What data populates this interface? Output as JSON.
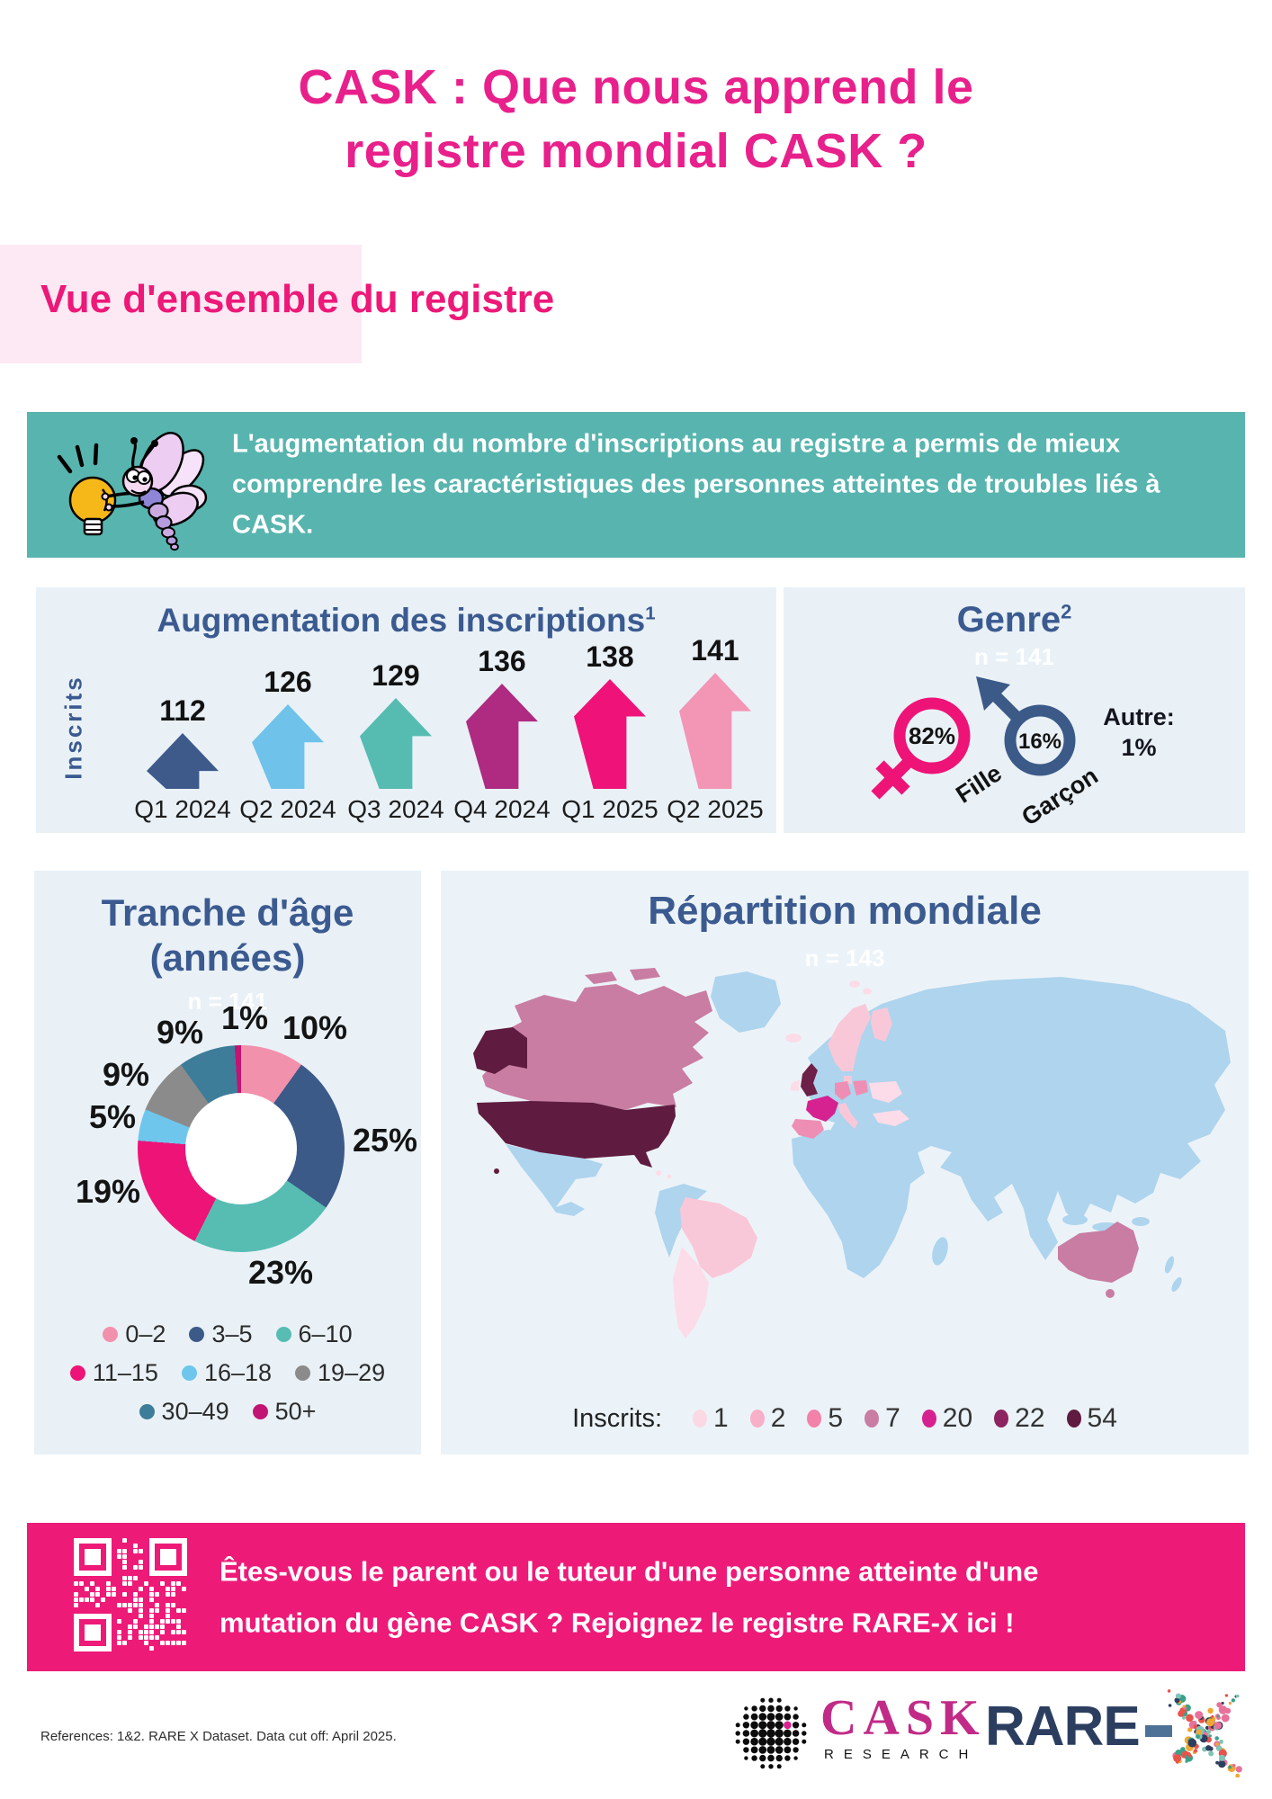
{
  "header": {
    "title_line1": "CASK : Que nous apprend le",
    "title_line2": "registre mondial CASK ?",
    "section_label": "Vue d'ensemble du registre"
  },
  "intro_banner": {
    "text": "L'augmentation du nombre d'inscriptions au registre a permis de mieux comprendre les caractéristiques des personnes atteintes de troubles liés à CASK."
  },
  "inscriptions": {
    "title": "Augmentation des inscriptions",
    "title_sup": "1",
    "ylabel": "Inscrits",
    "items": [
      {
        "label": "Q1 2024",
        "value": "112",
        "color": "#3d5a8a"
      },
      {
        "label": "Q2 2024",
        "value": "126",
        "color": "#6fc2ea"
      },
      {
        "label": "Q3 2024",
        "value": "129",
        "color": "#56bcb2"
      },
      {
        "label": "Q4 2024",
        "value": "136",
        "color": "#ae2b81"
      },
      {
        "label": "Q1 2025",
        "value": "138",
        "color": "#ef1379"
      },
      {
        "label": "Q2 2025",
        "value": "141",
        "color": "#f395b5"
      }
    ]
  },
  "genre": {
    "title": "Genre",
    "title_sup": "2",
    "n_label": "n = 141",
    "female_pct": "82%",
    "female_label": "Fille",
    "female_color": "#ee1377",
    "male_pct": "16%",
    "male_label": "Garçon",
    "male_color": "#3c5a88",
    "other_label": "Autre:",
    "other_pct": "1%"
  },
  "age": {
    "title_line1": "Tranche d'âge",
    "title_line2": "(années)",
    "n_label": "n = 141",
    "segments": [
      {
        "label": "0–2",
        "pct": 10,
        "pct_label": "10%",
        "color": "#f291ac"
      },
      {
        "label": "3–5",
        "pct": 25,
        "pct_label": "25%",
        "color": "#3c5a88"
      },
      {
        "label": "6–10",
        "pct": 23,
        "pct_label": "23%",
        "color": "#57bdb3"
      },
      {
        "label": "11–15",
        "pct": 19,
        "pct_label": "19%",
        "color": "#ee1377"
      },
      {
        "label": "16–18",
        "pct": 5,
        "pct_label": "5%",
        "color": "#6ec6ec"
      },
      {
        "label": "19–29",
        "pct": 9,
        "pct_label": "9%",
        "color": "#8b8b8b"
      },
      {
        "label": "30–49",
        "pct": 9,
        "pct_label": "9%",
        "color": "#3e7d99"
      },
      {
        "label": "50+",
        "pct": 1,
        "pct_label": "1%",
        "color": "#c21472"
      }
    ]
  },
  "map": {
    "title": "Répartition mondiale",
    "n_label": "n = 143",
    "legend_label": "Inscrits:",
    "legend": [
      {
        "value": "1",
        "color": "#fbd9e4"
      },
      {
        "value": "2",
        "color": "#f8afc8"
      },
      {
        "value": "5",
        "color": "#f282aa"
      },
      {
        "value": "7",
        "color": "#c97da3"
      },
      {
        "value": "20",
        "color": "#d62190"
      },
      {
        "value": "22",
        "color": "#8e2361"
      },
      {
        "value": "54",
        "color": "#5f1b40"
      }
    ],
    "palette": {
      "1": "#fcdce8",
      "2": "#f9c8d8",
      "5": "#ef8eb4",
      "7": "#c97da3",
      "20": "#d62190",
      "22": "#6d2048",
      "54": "#5f1b40"
    },
    "regions": {
      "usa": "54",
      "canada": "7",
      "uk": "22",
      "france": "20",
      "germany": "5",
      "poland": "5",
      "spain": "5",
      "italy": "2",
      "scandinavia": "2",
      "finland": "2",
      "denmark": "2",
      "ireland": "1",
      "iceland": "1",
      "svalbard": "1",
      "ukraine": "1",
      "turkey": "1",
      "brazil": "2",
      "southern-cone": "1",
      "australia": "7",
      "caribbean": "1"
    }
  },
  "cta": {
    "text_line1": "Êtes-vous le parent ou le tuteur d'une personne atteinte d'une",
    "text_line2": "mutation du gène CASK ? Rejoignez le registre RARE-X ici !"
  },
  "footer": {
    "references": "References: 1&2. RARE X Dataset. Data cut off: April 2025.",
    "cask_logo_word": "CASK",
    "cask_logo_sub": "RESEARCH",
    "rarex_logo_word": "RARE"
  },
  "chart_data": [
    {
      "type": "bar",
      "title": "Augmentation des inscriptions",
      "ylabel": "Inscrits",
      "categories": [
        "Q1 2024",
        "Q2 2024",
        "Q3 2024",
        "Q4 2024",
        "Q1 2025",
        "Q2 2025"
      ],
      "values": [
        112,
        126,
        129,
        136,
        138,
        141
      ]
    },
    {
      "type": "pie",
      "title": "Genre",
      "n": 141,
      "labels": [
        "Fille",
        "Garçon",
        "Autre"
      ],
      "values": [
        82,
        16,
        1
      ],
      "unit": "%"
    },
    {
      "type": "pie",
      "title": "Tranche d'âge (années)",
      "n": 141,
      "labels": [
        "0–2",
        "3–5",
        "6–10",
        "11–15",
        "16–18",
        "19–29",
        "30–49",
        "50+"
      ],
      "values": [
        10,
        25,
        23,
        19,
        5,
        9,
        9,
        1
      ],
      "unit": "%"
    },
    {
      "type": "heatmap",
      "title": "Répartition mondiale",
      "n": 143,
      "legend_label": "Inscrits:",
      "legend_values": [
        1,
        2,
        5,
        7,
        20,
        22,
        54
      ],
      "regions": [
        {
          "region": "USA",
          "inscrits": 54
        },
        {
          "region": "UK",
          "inscrits": 22
        },
        {
          "region": "France",
          "inscrits": 20
        },
        {
          "region": "Canada",
          "inscrits": 7
        },
        {
          "region": "Australia",
          "inscrits": 7
        },
        {
          "region": "Germany",
          "inscrits": 5
        },
        {
          "region": "Poland",
          "inscrits": 5
        },
        {
          "region": "Spain",
          "inscrits": 5
        },
        {
          "region": "Italy",
          "inscrits": 2
        },
        {
          "region": "Brazil",
          "inscrits": 2
        },
        {
          "region": "Scandinavia",
          "inscrits": 2
        },
        {
          "region": "Other shaded countries",
          "inscrits": 1
        }
      ]
    }
  ]
}
